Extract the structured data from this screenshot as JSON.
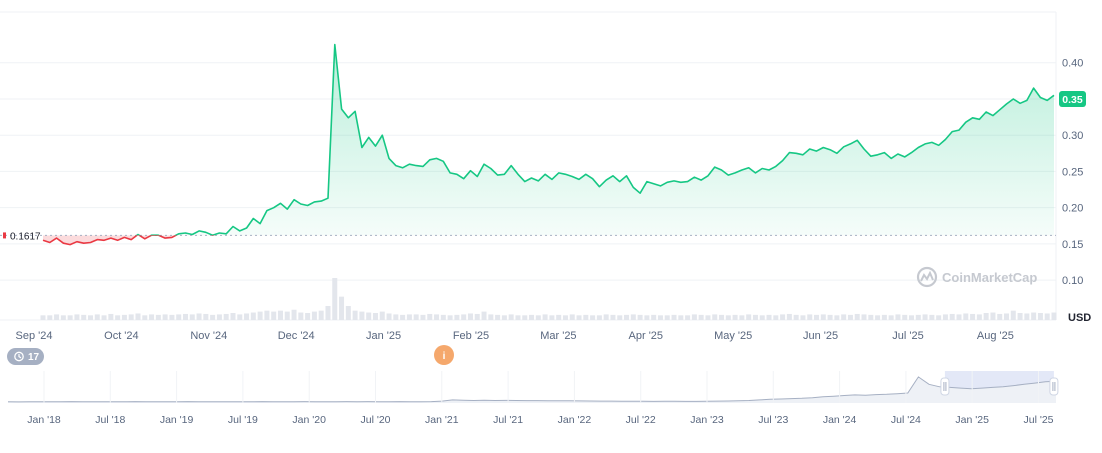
{
  "chart_data": {
    "type": "line",
    "currency_label": "USD",
    "y_ticks": [
      "0.10",
      "0.15",
      "0.20",
      "0.25",
      "0.30",
      "0.35",
      "0.40"
    ],
    "ylim": [
      0.045,
      0.47
    ],
    "x_ticks": [
      "Sep '24",
      "Oct '24",
      "Nov '24",
      "Dec '24",
      "Jan '25",
      "Feb '25",
      "Mar '25",
      "Apr '25",
      "May '25",
      "Jun '25",
      "Jul '25",
      "Aug '25"
    ],
    "reference_price": "0.1617",
    "reference_value": 0.1617,
    "current_price": "0.35",
    "current_value": 0.35,
    "grid": true,
    "colors": {
      "up": "#16c784",
      "down": "#ea3943",
      "badge": "#16c784",
      "reference_line": "#a6b0c3"
    },
    "series": [
      {
        "values": [
          0.155,
          0.152,
          0.158,
          0.151,
          0.149,
          0.153,
          0.151,
          0.152,
          0.156,
          0.155,
          0.158,
          0.155,
          0.159,
          0.156,
          0.163,
          0.157,
          0.162,
          0.162,
          0.158,
          0.159,
          0.164,
          0.165,
          0.163,
          0.168,
          0.166,
          0.162,
          0.165,
          0.164,
          0.174,
          0.168,
          0.172,
          0.185,
          0.178,
          0.196,
          0.2,
          0.206,
          0.198,
          0.211,
          0.205,
          0.203,
          0.208,
          0.209,
          0.213,
          0.425,
          0.336,
          0.324,
          0.333,
          0.283,
          0.297,
          0.285,
          0.3,
          0.268,
          0.258,
          0.255,
          0.26,
          0.258,
          0.257,
          0.266,
          0.268,
          0.264,
          0.248,
          0.246,
          0.24,
          0.251,
          0.243,
          0.26,
          0.254,
          0.245,
          0.246,
          0.258,
          0.246,
          0.236,
          0.241,
          0.237,
          0.246,
          0.239,
          0.248,
          0.246,
          0.243,
          0.239,
          0.246,
          0.24,
          0.229,
          0.238,
          0.244,
          0.236,
          0.244,
          0.228,
          0.22,
          0.236,
          0.233,
          0.23,
          0.235,
          0.237,
          0.235,
          0.236,
          0.242,
          0.238,
          0.244,
          0.256,
          0.252,
          0.245,
          0.248,
          0.252,
          0.255,
          0.248,
          0.254,
          0.252,
          0.257,
          0.265,
          0.276,
          0.275,
          0.273,
          0.281,
          0.278,
          0.283,
          0.28,
          0.275,
          0.284,
          0.288,
          0.293,
          0.281,
          0.271,
          0.273,
          0.276,
          0.268,
          0.274,
          0.27,
          0.276,
          0.283,
          0.288,
          0.29,
          0.286,
          0.294,
          0.305,
          0.307,
          0.318,
          0.324,
          0.322,
          0.332,
          0.327,
          0.335,
          0.343,
          0.35,
          0.344,
          0.348,
          0.365,
          0.352,
          0.348,
          0.355
        ]
      }
    ],
    "volume": [
      0.01,
      0.01,
      0.012,
      0.01,
      0.01,
      0.012,
      0.011,
      0.01,
      0.012,
      0.01,
      0.013,
      0.01,
      0.011,
      0.012,
      0.014,
      0.01,
      0.012,
      0.011,
      0.012,
      0.011,
      0.012,
      0.013,
      0.012,
      0.014,
      0.013,
      0.011,
      0.012,
      0.013,
      0.015,
      0.012,
      0.014,
      0.016,
      0.018,
      0.02,
      0.018,
      0.02,
      0.018,
      0.022,
      0.016,
      0.015,
      0.018,
      0.02,
      0.03,
      0.09,
      0.05,
      0.03,
      0.02,
      0.018,
      0.016,
      0.015,
      0.018,
      0.014,
      0.012,
      0.011,
      0.012,
      0.012,
      0.011,
      0.013,
      0.012,
      0.011,
      0.01,
      0.011,
      0.012,
      0.014,
      0.013,
      0.018,
      0.012,
      0.011,
      0.01,
      0.012,
      0.01,
      0.01,
      0.011,
      0.01,
      0.012,
      0.01,
      0.011,
      0.01,
      0.012,
      0.01,
      0.011,
      0.01,
      0.01,
      0.012,
      0.011,
      0.01,
      0.011,
      0.012,
      0.011,
      0.01,
      0.011,
      0.01,
      0.01,
      0.011,
      0.01,
      0.01,
      0.012,
      0.011,
      0.01,
      0.012,
      0.011,
      0.01,
      0.011,
      0.01,
      0.012,
      0.011,
      0.01,
      0.011,
      0.01,
      0.012,
      0.013,
      0.011,
      0.01,
      0.012,
      0.011,
      0.012,
      0.011,
      0.01,
      0.012,
      0.011,
      0.013,
      0.012,
      0.011,
      0.01,
      0.011,
      0.01,
      0.012,
      0.011,
      0.01,
      0.011,
      0.012,
      0.011,
      0.01,
      0.012,
      0.013,
      0.012,
      0.014,
      0.013,
      0.012,
      0.015,
      0.016,
      0.013,
      0.014,
      0.02,
      0.015,
      0.014,
      0.016,
      0.015,
      0.014,
      0.016
    ],
    "watermark": "CoinMarketCap"
  },
  "navigator": {
    "ticks": [
      "Jan '18",
      "Jul '18",
      "Jan '19",
      "Jul '19",
      "Jan '20",
      "Jul '20",
      "Jan '21",
      "Jul '21",
      "Jan '22",
      "Jul '22",
      "Jan '23",
      "Jul '23",
      "Jan '24",
      "Jul '24",
      "Jan '25",
      "Jul '25"
    ],
    "history": [
      0.02,
      0.018,
      0.02,
      0.019,
      0.021,
      0.02,
      0.022,
      0.02,
      0.021,
      0.02,
      0.021,
      0.02,
      0.022,
      0.021,
      0.02,
      0.021,
      0.02,
      0.022,
      0.021,
      0.02,
      0.021,
      0.02,
      0.021,
      0.02,
      0.022,
      0.021,
      0.02,
      0.021,
      0.022,
      0.021,
      0.02,
      0.021,
      0.022,
      0.021,
      0.022,
      0.021,
      0.02,
      0.022,
      0.021,
      0.02,
      0.022,
      0.03,
      0.05,
      0.045,
      0.04,
      0.043,
      0.04,
      0.042,
      0.04,
      0.039,
      0.038,
      0.037,
      0.036,
      0.035,
      0.034,
      0.032,
      0.03,
      0.031,
      0.029,
      0.028,
      0.027,
      0.026,
      0.028,
      0.027,
      0.025,
      0.026,
      0.028,
      0.03,
      0.032,
      0.035,
      0.04,
      0.05,
      0.06,
      0.065,
      0.07,
      0.075,
      0.085,
      0.1,
      0.11,
      0.12,
      0.13,
      0.125,
      0.135,
      0.14,
      0.15,
      0.16,
      0.42,
      0.3,
      0.26,
      0.25,
      0.24,
      0.23,
      0.24,
      0.25,
      0.26,
      0.28,
      0.3,
      0.32,
      0.34,
      0.35
    ],
    "history_max": 0.45,
    "window_range": [
      0.894,
      0.998
    ],
    "event_count": "17",
    "event_marker": "i",
    "colors": {
      "window": "#d7def3",
      "line": "#a6b0c3"
    }
  }
}
